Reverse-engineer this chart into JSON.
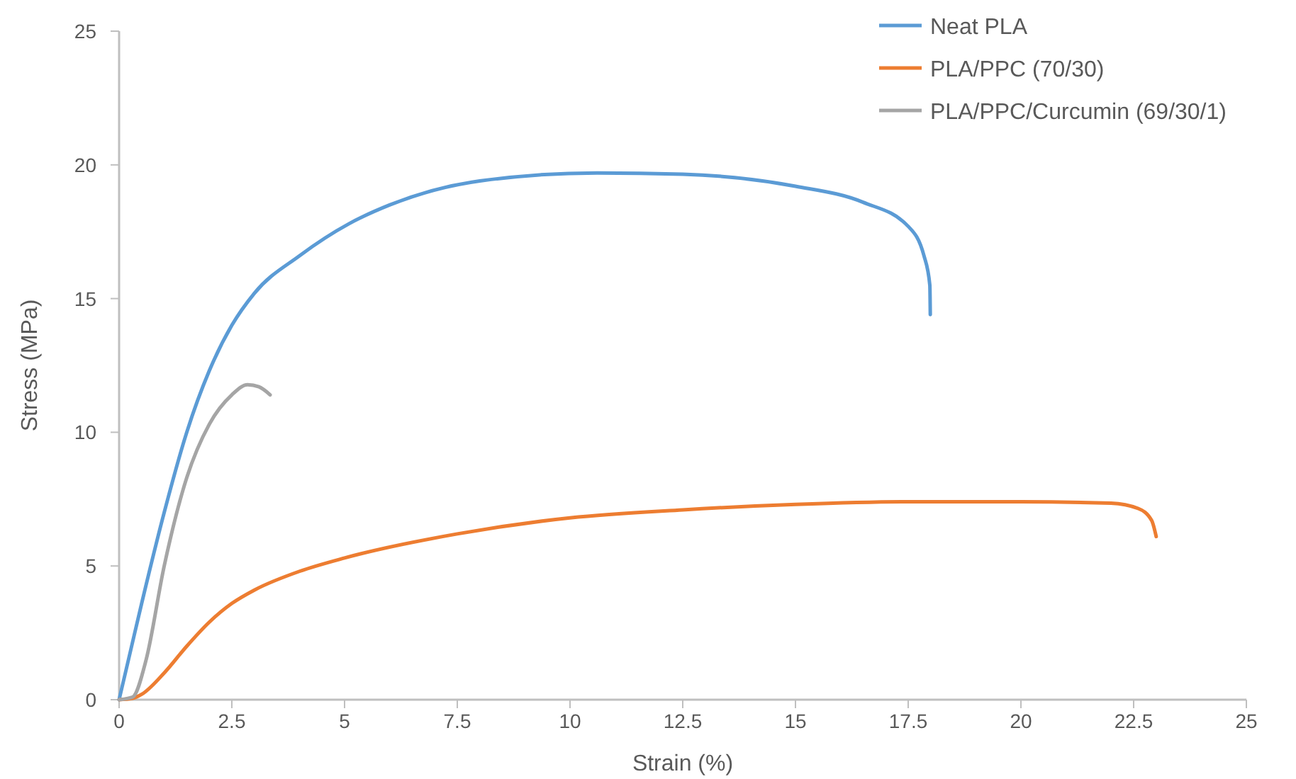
{
  "chart_data": {
    "type": "line",
    "xlabel": "Strain (%)",
    "ylabel": "Stress (MPa)",
    "xlim": [
      0,
      25
    ],
    "xticks": [
      0,
      2.5,
      5,
      7.5,
      10,
      12.5,
      15,
      17.5,
      20,
      22.5,
      25
    ],
    "ylim": [
      0,
      25
    ],
    "yticks": [
      0,
      5,
      10,
      15,
      20,
      25
    ],
    "grid": false,
    "legend": "top right",
    "marker": "none",
    "line_style": "solid",
    "series": [
      {
        "name": "Neat PLA",
        "color": "#5b9bd5",
        "x": [
          0,
          0.25,
          0.5,
          1,
          1.5,
          2,
          2.5,
          3,
          4,
          5.1,
          6,
          8,
          10.6,
          12.5,
          15,
          16.5,
          17.5,
          17.85,
          17.98,
          17.99
        ],
        "values": [
          0,
          1.8,
          3.6,
          7,
          10,
          12.3,
          14,
          15.2,
          16.6,
          17.8,
          18.5,
          19.4,
          19.7,
          19.65,
          19.2,
          18.6,
          17.7,
          16.6,
          15.5,
          14.4
        ]
      },
      {
        "name": "PLA/PPC (70/30)",
        "color": "#ed7d31",
        "x": [
          0,
          0.3,
          0.5,
          1,
          1.5,
          2,
          2.5,
          3,
          4,
          5,
          7.5,
          10,
          12.5,
          15,
          17.5,
          20,
          22,
          22.6,
          22.9,
          23
        ],
        "values": [
          0,
          0.05,
          0.2,
          1,
          2,
          2.9,
          3.6,
          4.1,
          4.8,
          5.3,
          6.2,
          6.8,
          7.1,
          7.3,
          7.4,
          7.4,
          7.35,
          7.15,
          6.7,
          6.1
        ]
      },
      {
        "name": "PLA/PPC/Curcumin (69/30/1)",
        "color": "#a5a5a5",
        "x": [
          0,
          0.3,
          0.6,
          1,
          1.5,
          2,
          2.5,
          2.85,
          3.1,
          3.35
        ],
        "values": [
          0,
          0.1,
          1.5,
          5,
          8.3,
          10.3,
          11.4,
          11.78,
          11.7,
          11.4
        ]
      }
    ]
  }
}
